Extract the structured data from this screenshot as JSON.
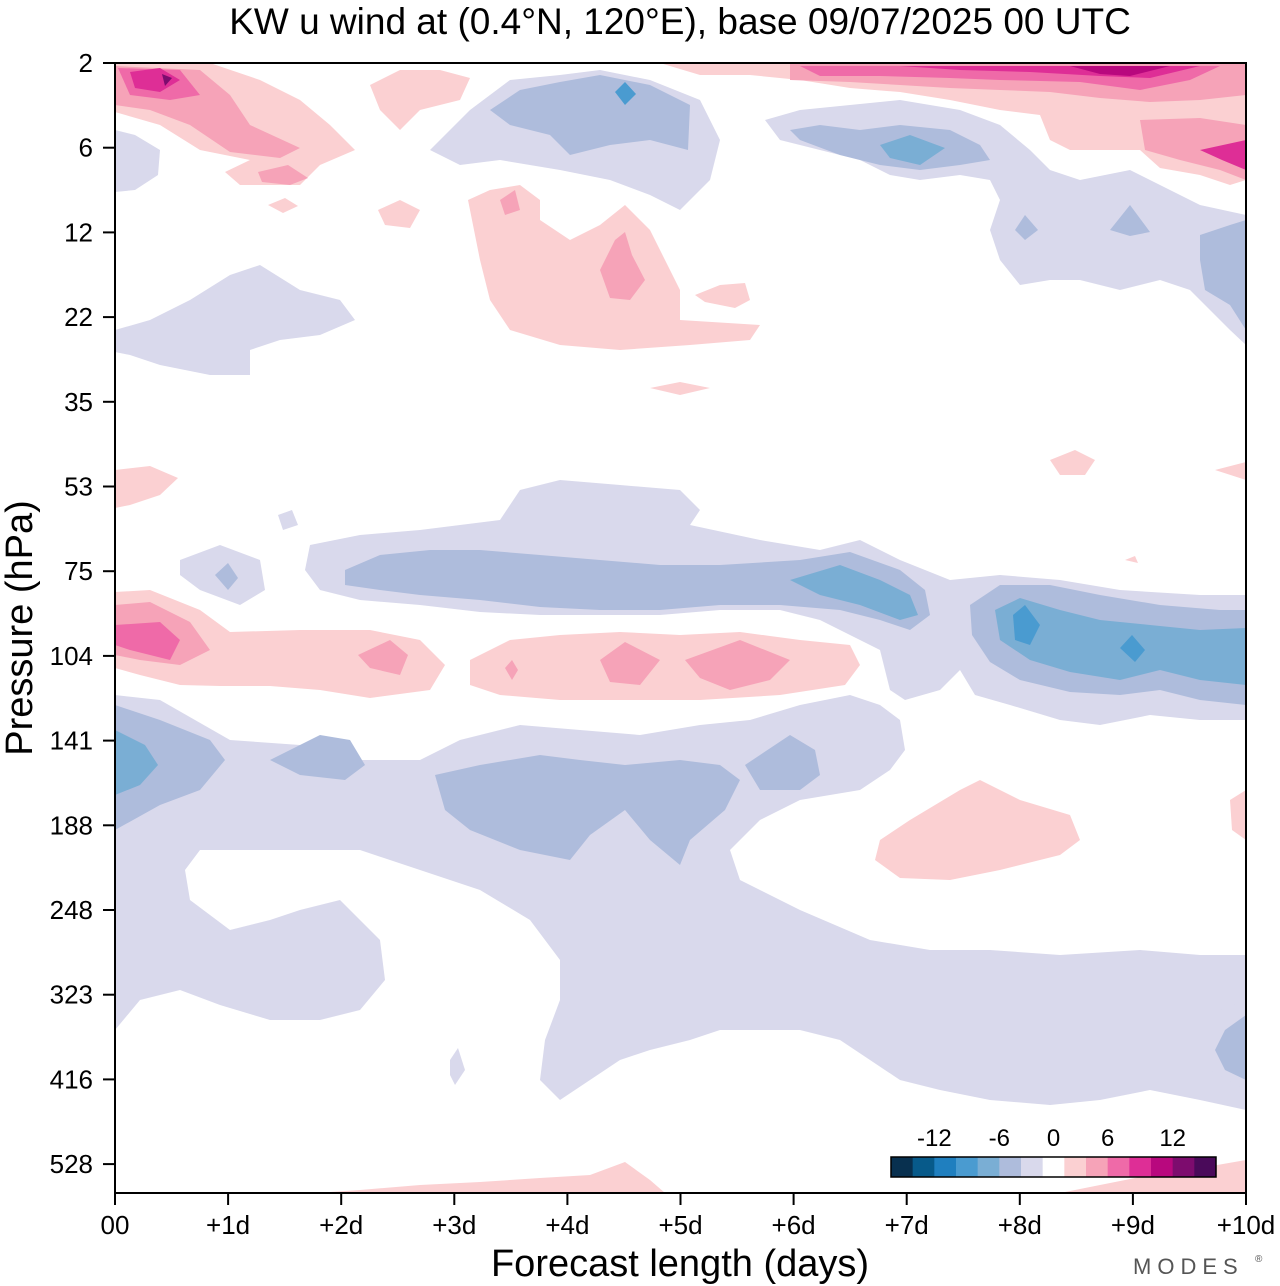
{
  "chart_data": {
    "type": "heatmap",
    "title": "KW u wind at (0.4°N, 120°E),  base 09/07/2025  00 UTC",
    "xlabel": "Forecast length (days)",
    "ylabel": "Pressure (hPa)",
    "x_ticks": [
      "00",
      "+1d",
      "+2d",
      "+3d",
      "+4d",
      "+5d",
      "+6d",
      "+7d",
      "+8d",
      "+9d",
      "+10d"
    ],
    "y_ticks": [
      "2",
      "6",
      "12",
      "22",
      "35",
      "53",
      "75",
      "104",
      "141",
      "188",
      "248",
      "323",
      "416",
      "528"
    ],
    "xlim_days": [
      0,
      10
    ],
    "y_scale": "log-like, top = 2 hPa, bottom below 528 hPa",
    "colorbar": {
      "labels": [
        "-12",
        "-6",
        "0",
        "6",
        "12"
      ],
      "placement": "bottom-right, inside plot",
      "colors": [
        "#08304f",
        "#075a8a",
        "#1f7fbf",
        "#4a9bd0",
        "#7aaed4",
        "#aebcdc",
        "#d9d9ec",
        "#ffffff",
        "#fbd0d2",
        "#f6a3b8",
        "#ef6aa8",
        "#de2e96",
        "#b8087e",
        "#7d0c6e",
        "#4a0a5a"
      ]
    },
    "features": [
      {
        "name": "upper positive band",
        "level_hPa": "2-8",
        "x_days": [
          0,
          1.2
        ],
        "peak": 12
      },
      {
        "name": "upper negative patch",
        "level_hPa": "2-8",
        "x_days": [
          3.4,
          5.3
        ],
        "peak": -6
      },
      {
        "name": "upper positive band late",
        "level_hPa": "2-4",
        "x_days": [
          6,
          10
        ],
        "peak": 12
      },
      {
        "name": "mid-level positive patch",
        "level_hPa": "9-25",
        "x_days": [
          3.2,
          5.6
        ],
        "peak": 6
      },
      {
        "name": "negative band",
        "level_hPa": "60-90",
        "x_days": [
          0.6,
          7.2
        ],
        "peak": -6
      },
      {
        "name": "positive band",
        "level_hPa": "90-120",
        "x_days": [
          0,
          6.6
        ],
        "peak": 6
      },
      {
        "name": "negative band",
        "level_hPa": "85-135",
        "x_days": [
          7.6,
          10
        ],
        "peak": -9
      },
      {
        "name": "negative layer",
        "level_hPa": "130-210",
        "x_days": [
          0,
          7.5
        ],
        "peak": -6
      },
      {
        "name": "positive patch",
        "level_hPa": "160-220",
        "x_days": [
          6.7,
          8.5
        ],
        "peak": 3
      }
    ]
  },
  "brand": "MODES"
}
